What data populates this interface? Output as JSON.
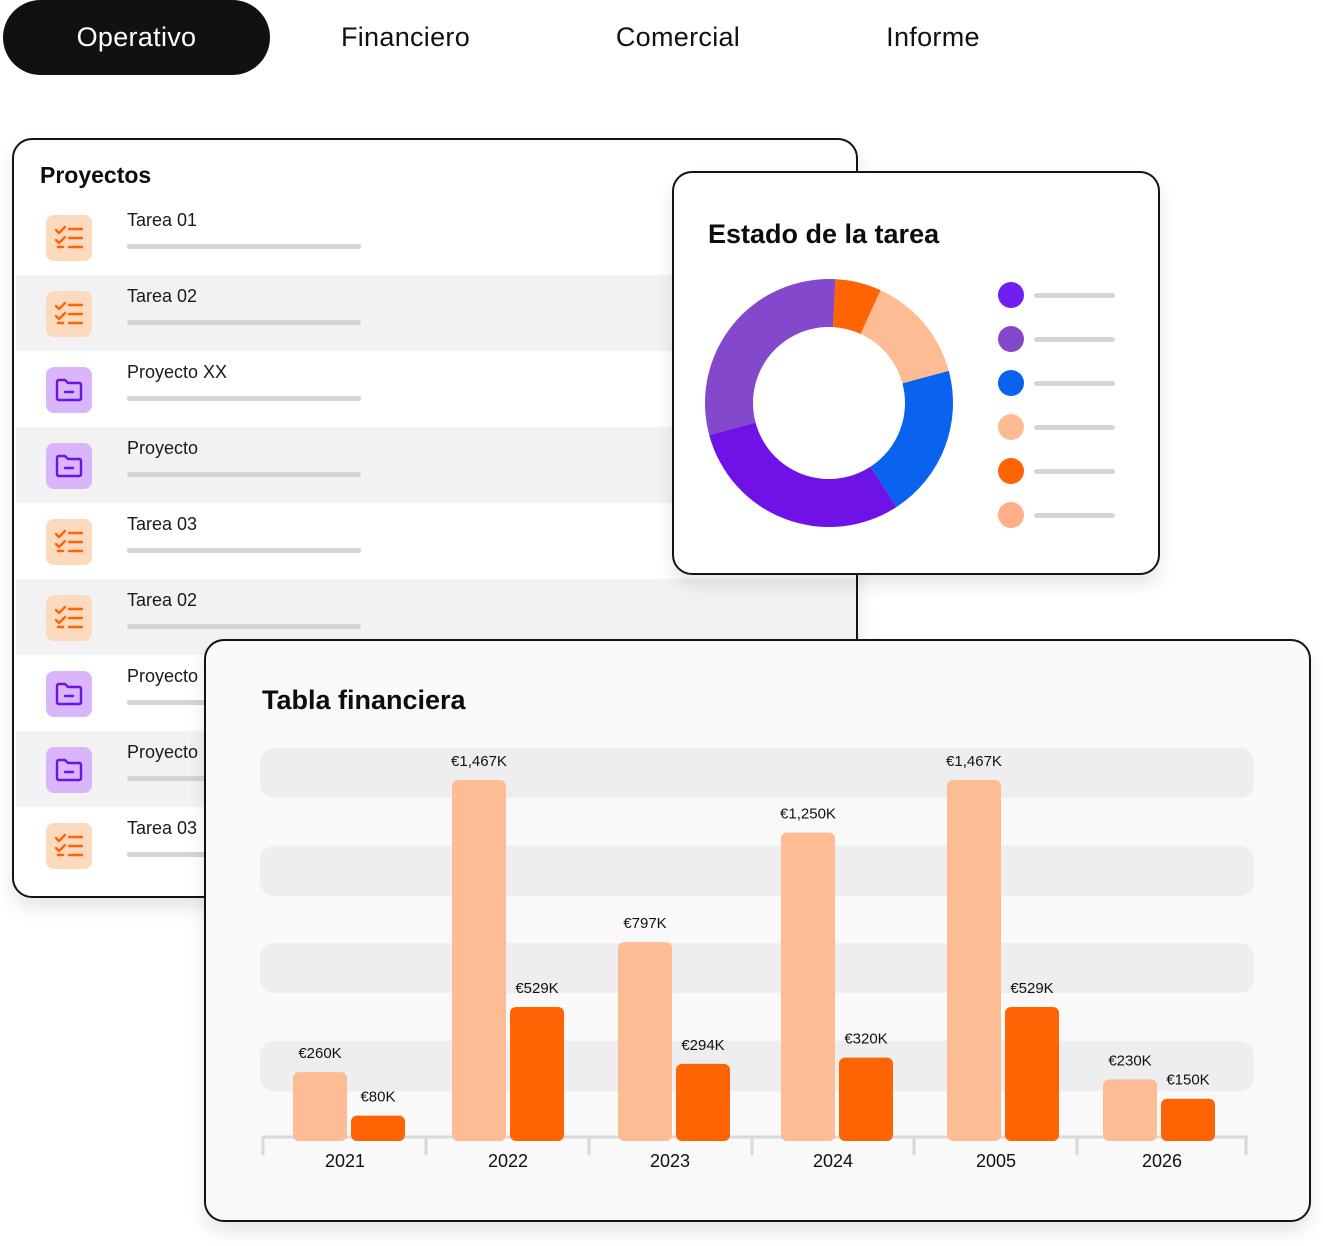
{
  "tabs": [
    {
      "label": "Operativo",
      "active": true
    },
    {
      "label": "Financiero",
      "active": false
    },
    {
      "label": "Comercial",
      "active": false
    },
    {
      "label": "Informe",
      "active": false
    }
  ],
  "projects": {
    "title": "Proyectos",
    "items": [
      {
        "label": "Tarea 01",
        "icon": "checklist-icon"
      },
      {
        "label": "Tarea 02",
        "icon": "checklist-icon"
      },
      {
        "label": "Proyecto XX",
        "icon": "folder-icon"
      },
      {
        "label": "Proyecto",
        "icon": "folder-icon"
      },
      {
        "label": "Tarea 03",
        "icon": "checklist-icon"
      },
      {
        "label": "Tarea 02",
        "icon": "checklist-icon"
      },
      {
        "label": "Proyecto",
        "icon": "folder-icon"
      },
      {
        "label": "Proyecto",
        "icon": "folder-icon"
      },
      {
        "label": "Tarea 03",
        "icon": "checklist-icon"
      }
    ]
  },
  "status": {
    "title": "Estado de la tarea",
    "legend_colors": [
      "#6f1ff0",
      "#8448cc",
      "#0a63ef",
      "#fdbb94",
      "#fe6404",
      "#fdb088"
    ]
  },
  "colors": {
    "accent_light": "#fdbc94",
    "accent_dark": "#fe6404",
    "tab_active_bg": "#111111",
    "task_icon_bg": "#fdd9bd",
    "folder_icon_bg": "#d9b5fb"
  },
  "chart_data": [
    {
      "type": "pie",
      "title": "",
      "donut": true,
      "slices": [
        {
          "value": 30,
          "color": "#8448cc"
        },
        {
          "value": 6,
          "color": "#fe6404"
        },
        {
          "value": 14,
          "color": "#fdbc94"
        },
        {
          "value": 20,
          "color": "#0a63ef"
        },
        {
          "value": 30,
          "color": "#6f12e8"
        }
      ]
    },
    {
      "type": "bar",
      "title": "Tabla financiera",
      "categories": [
        "2021",
        "2022",
        "2023",
        "2024",
        "2005",
        "2026"
      ],
      "series": [
        {
          "values": [
            260,
            1467,
            797,
            1250,
            1467,
            230
          ],
          "labels": [
            "€260K",
            "€1,467K",
            "€797K",
            "€1,250K",
            "€1,467K",
            "€230K"
          ],
          "color": "#fdbc94"
        },
        {
          "values": [
            80,
            529,
            294,
            320,
            529,
            150
          ],
          "labels": [
            "€80K",
            "€529K",
            "€294K",
            "€320K",
            "€529K",
            "€150K"
          ],
          "color": "#fe6404"
        }
      ],
      "ylim": [
        0,
        1467
      ],
      "grid": true
    }
  ]
}
